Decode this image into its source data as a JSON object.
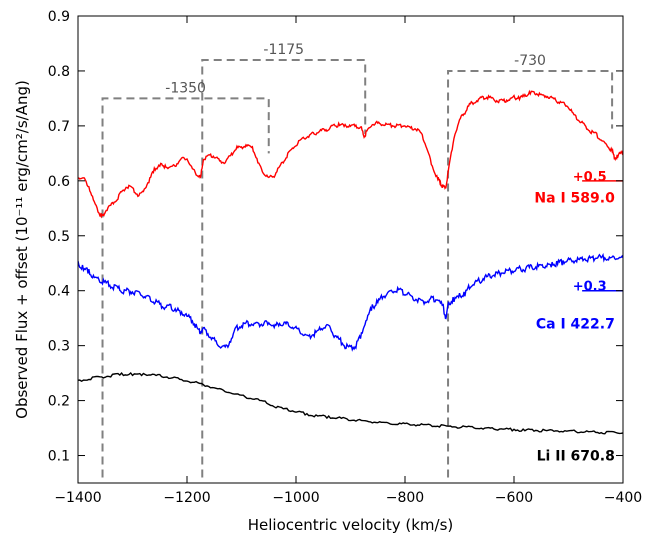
{
  "chart_data": {
    "type": "line",
    "xlabel": "Heliocentric velocity (km/s)",
    "ylabel": "Observed Flux + offset (10⁻¹¹ erg/cm²/s/Ang)",
    "xlim": [
      -1400,
      -400
    ],
    "ylim": [
      0.05,
      0.9
    ],
    "xticks": [
      -1400,
      -1200,
      -1000,
      -800,
      -600,
      -400
    ],
    "xtick_labels": [
      "−1400",
      "−1200",
      "−1000",
      "−800",
      "−600",
      "−400"
    ],
    "yticks": [
      0.1,
      0.2,
      0.3,
      0.4,
      0.5,
      0.6,
      0.7,
      0.8,
      0.9
    ],
    "ytick_labels": [
      "0.1",
      "0.2",
      "0.3",
      "0.4",
      "0.5",
      "0.6",
      "0.7",
      "0.8",
      "0.9"
    ],
    "grid": false,
    "series": [
      {
        "name": "Na I 589.0",
        "color": "#ff0000",
        "offset_label": "+0.5",
        "offset_line_y": 0.6,
        "x": [
          -1400,
          -1390,
          -1380,
          -1370,
          -1360,
          -1355,
          -1350,
          -1340,
          -1330,
          -1320,
          -1310,
          -1300,
          -1290,
          -1280,
          -1270,
          -1260,
          -1250,
          -1240,
          -1230,
          -1220,
          -1210,
          -1200,
          -1190,
          -1180,
          -1175,
          -1170,
          -1160,
          -1150,
          -1140,
          -1130,
          -1120,
          -1110,
          -1100,
          -1090,
          -1080,
          -1070,
          -1060,
          -1050,
          -1040,
          -1030,
          -1020,
          -1010,
          -1000,
          -990,
          -980,
          -970,
          -960,
          -950,
          -940,
          -930,
          -920,
          -910,
          -900,
          -890,
          -880,
          -875,
          -870,
          -860,
          -850,
          -840,
          -830,
          -820,
          -810,
          -800,
          -790,
          -780,
          -770,
          -760,
          -750,
          -740,
          -735,
          -730,
          -725,
          -720,
          -710,
          -700,
          -690,
          -680,
          -670,
          -660,
          -650,
          -640,
          -630,
          -620,
          -610,
          -600,
          -590,
          -580,
          -570,
          -560,
          -550,
          -540,
          -530,
          -520,
          -510,
          -500,
          -490,
          -480,
          -470,
          -460,
          -450,
          -440,
          -430,
          -420,
          -415,
          -410,
          -400
        ],
        "y": [
          0.605,
          0.605,
          0.59,
          0.56,
          0.54,
          0.535,
          0.545,
          0.555,
          0.565,
          0.58,
          0.59,
          0.585,
          0.575,
          0.58,
          0.6,
          0.62,
          0.63,
          0.625,
          0.625,
          0.63,
          0.64,
          0.64,
          0.62,
          0.61,
          0.605,
          0.64,
          0.645,
          0.645,
          0.635,
          0.635,
          0.645,
          0.66,
          0.66,
          0.665,
          0.66,
          0.635,
          0.615,
          0.605,
          0.61,
          0.625,
          0.64,
          0.655,
          0.665,
          0.675,
          0.68,
          0.685,
          0.688,
          0.692,
          0.695,
          0.7,
          0.702,
          0.7,
          0.7,
          0.7,
          0.695,
          0.68,
          0.69,
          0.703,
          0.705,
          0.702,
          0.702,
          0.7,
          0.7,
          0.7,
          0.695,
          0.695,
          0.685,
          0.66,
          0.625,
          0.605,
          0.595,
          0.588,
          0.59,
          0.62,
          0.68,
          0.71,
          0.725,
          0.74,
          0.745,
          0.75,
          0.752,
          0.75,
          0.745,
          0.745,
          0.748,
          0.752,
          0.75,
          0.755,
          0.76,
          0.76,
          0.755,
          0.755,
          0.75,
          0.745,
          0.74,
          0.735,
          0.72,
          0.71,
          0.7,
          0.69,
          0.685,
          0.675,
          0.665,
          0.655,
          0.64,
          0.645,
          0.655
        ]
      },
      {
        "name": "Ca I 422.7",
        "color": "#0000ff",
        "offset_label": "+0.3",
        "offset_line_y": 0.4,
        "x": [
          -1400,
          -1390,
          -1380,
          -1370,
          -1360,
          -1350,
          -1340,
          -1330,
          -1320,
          -1310,
          -1300,
          -1290,
          -1280,
          -1270,
          -1260,
          -1250,
          -1240,
          -1230,
          -1220,
          -1210,
          -1200,
          -1190,
          -1180,
          -1175,
          -1170,
          -1160,
          -1150,
          -1140,
          -1130,
          -1120,
          -1110,
          -1100,
          -1090,
          -1080,
          -1070,
          -1060,
          -1050,
          -1040,
          -1030,
          -1020,
          -1010,
          -1000,
          -990,
          -980,
          -970,
          -960,
          -950,
          -940,
          -930,
          -920,
          -910,
          -900,
          -890,
          -880,
          -870,
          -860,
          -850,
          -840,
          -830,
          -820,
          -810,
          -800,
          -790,
          -780,
          -770,
          -760,
          -750,
          -740,
          -730,
          -725,
          -720,
          -710,
          -700,
          -690,
          -680,
          -670,
          -660,
          -650,
          -640,
          -630,
          -620,
          -610,
          -600,
          -590,
          -580,
          -570,
          -560,
          -550,
          -540,
          -530,
          -520,
          -510,
          -500,
          -490,
          -480,
          -470,
          -460,
          -450,
          -440,
          -430,
          -420,
          -410,
          -400
        ],
        "y": [
          0.45,
          0.44,
          0.435,
          0.425,
          0.42,
          0.415,
          0.41,
          0.405,
          0.4,
          0.4,
          0.398,
          0.395,
          0.39,
          0.385,
          0.38,
          0.375,
          0.37,
          0.37,
          0.365,
          0.36,
          0.355,
          0.345,
          0.33,
          0.325,
          0.33,
          0.32,
          0.31,
          0.3,
          0.295,
          0.31,
          0.33,
          0.338,
          0.34,
          0.34,
          0.338,
          0.34,
          0.34,
          0.335,
          0.34,
          0.34,
          0.335,
          0.33,
          0.325,
          0.315,
          0.32,
          0.325,
          0.335,
          0.335,
          0.32,
          0.31,
          0.3,
          0.295,
          0.3,
          0.32,
          0.35,
          0.37,
          0.38,
          0.39,
          0.395,
          0.4,
          0.4,
          0.395,
          0.39,
          0.385,
          0.38,
          0.38,
          0.385,
          0.385,
          0.37,
          0.35,
          0.375,
          0.385,
          0.39,
          0.395,
          0.41,
          0.415,
          0.42,
          0.425,
          0.428,
          0.43,
          0.435,
          0.435,
          0.438,
          0.44,
          0.44,
          0.442,
          0.443,
          0.445,
          0.445,
          0.447,
          0.45,
          0.452,
          0.455,
          0.455,
          0.455,
          0.458,
          0.458,
          0.46,
          0.46,
          0.46,
          0.458,
          0.46,
          0.46
        ]
      },
      {
        "name": "Li II 670.8",
        "color": "#000000",
        "offset_label": "",
        "x": [
          -1400,
          -1380,
          -1360,
          -1340,
          -1320,
          -1300,
          -1280,
          -1260,
          -1240,
          -1220,
          -1200,
          -1180,
          -1160,
          -1140,
          -1120,
          -1100,
          -1080,
          -1060,
          -1040,
          -1020,
          -1000,
          -980,
          -960,
          -940,
          -920,
          -900,
          -880,
          -860,
          -840,
          -820,
          -800,
          -780,
          -760,
          -740,
          -720,
          -700,
          -680,
          -660,
          -640,
          -620,
          -600,
          -580,
          -560,
          -540,
          -520,
          -500,
          -480,
          -460,
          -440,
          -420,
          -400
        ],
        "y": [
          0.235,
          0.24,
          0.243,
          0.245,
          0.248,
          0.248,
          0.248,
          0.246,
          0.244,
          0.24,
          0.236,
          0.232,
          0.226,
          0.22,
          0.214,
          0.208,
          0.204,
          0.198,
          0.19,
          0.184,
          0.18,
          0.175,
          0.172,
          0.17,
          0.168,
          0.165,
          0.163,
          0.161,
          0.16,
          0.158,
          0.157,
          0.156,
          0.155,
          0.154,
          0.153,
          0.152,
          0.151,
          0.15,
          0.149,
          0.148,
          0.147,
          0.146,
          0.146,
          0.145,
          0.145,
          0.144,
          0.144,
          0.143,
          0.142,
          0.142,
          0.141
        ]
      }
    ],
    "velocity_groups": [
      {
        "label": "-1350",
        "x_start": -1355,
        "x_end": -1050,
        "y_top": 0.75,
        "y_bottom_left": 0.06,
        "y_bottom_right": 0.65
      },
      {
        "label": "-1175",
        "x_start": -1172,
        "x_end": -873,
        "y_top": 0.82,
        "y_bottom_left": 0.06,
        "y_bottom_right": 0.685
      },
      {
        "label": "-730",
        "x_start": -721,
        "x_end": -420,
        "y_top": 0.8,
        "y_bottom_left": 0.06,
        "y_bottom_right": 0.695
      }
    ],
    "marker_color": "#808080"
  }
}
